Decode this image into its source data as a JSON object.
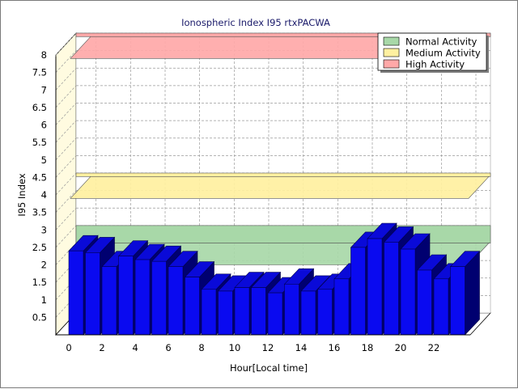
{
  "chart_data": {
    "type": "bar",
    "title": "Ionospheric Index I95 rtxPACWA",
    "xlabel": "Hour[Local time]",
    "ylabel": "I95 Index",
    "ylim": [
      0,
      8
    ],
    "yticks": [
      "0.5",
      "1",
      "1.5",
      "2",
      "2.5",
      "3",
      "3.5",
      "4",
      "4.5",
      "5",
      "5.5",
      "6",
      "6.5",
      "7",
      "7.5",
      "8"
    ],
    "xticks": [
      "0",
      "2",
      "4",
      "6",
      "8",
      "10",
      "12",
      "14",
      "16",
      "18",
      "20",
      "22"
    ],
    "x": [
      0,
      1,
      2,
      3,
      4,
      5,
      6,
      7,
      8,
      9,
      10,
      11,
      12,
      13,
      14,
      15,
      16,
      17,
      18,
      19,
      20,
      21,
      22,
      23
    ],
    "values": [
      2.4,
      2.35,
      1.95,
      2.25,
      2.15,
      2.1,
      1.95,
      1.65,
      1.3,
      1.25,
      1.35,
      1.35,
      1.2,
      1.45,
      1.25,
      1.3,
      1.6,
      2.5,
      2.75,
      2.65,
      2.45,
      1.85,
      1.6,
      1.95
    ],
    "bar_color": "#0a0af0",
    "grid": true,
    "legend_position": "top-right",
    "bands": [
      {
        "name": "Normal Activity",
        "from": 2.0,
        "to": 2.5,
        "color": "#a8d8a8"
      },
      {
        "name": "Medium Activity",
        "from": 3.9,
        "to": 4.0,
        "color": "#fff0a0"
      },
      {
        "name": "High Activity",
        "from": 7.9,
        "to": 8.0,
        "color": "#ffa8a8"
      }
    ]
  }
}
